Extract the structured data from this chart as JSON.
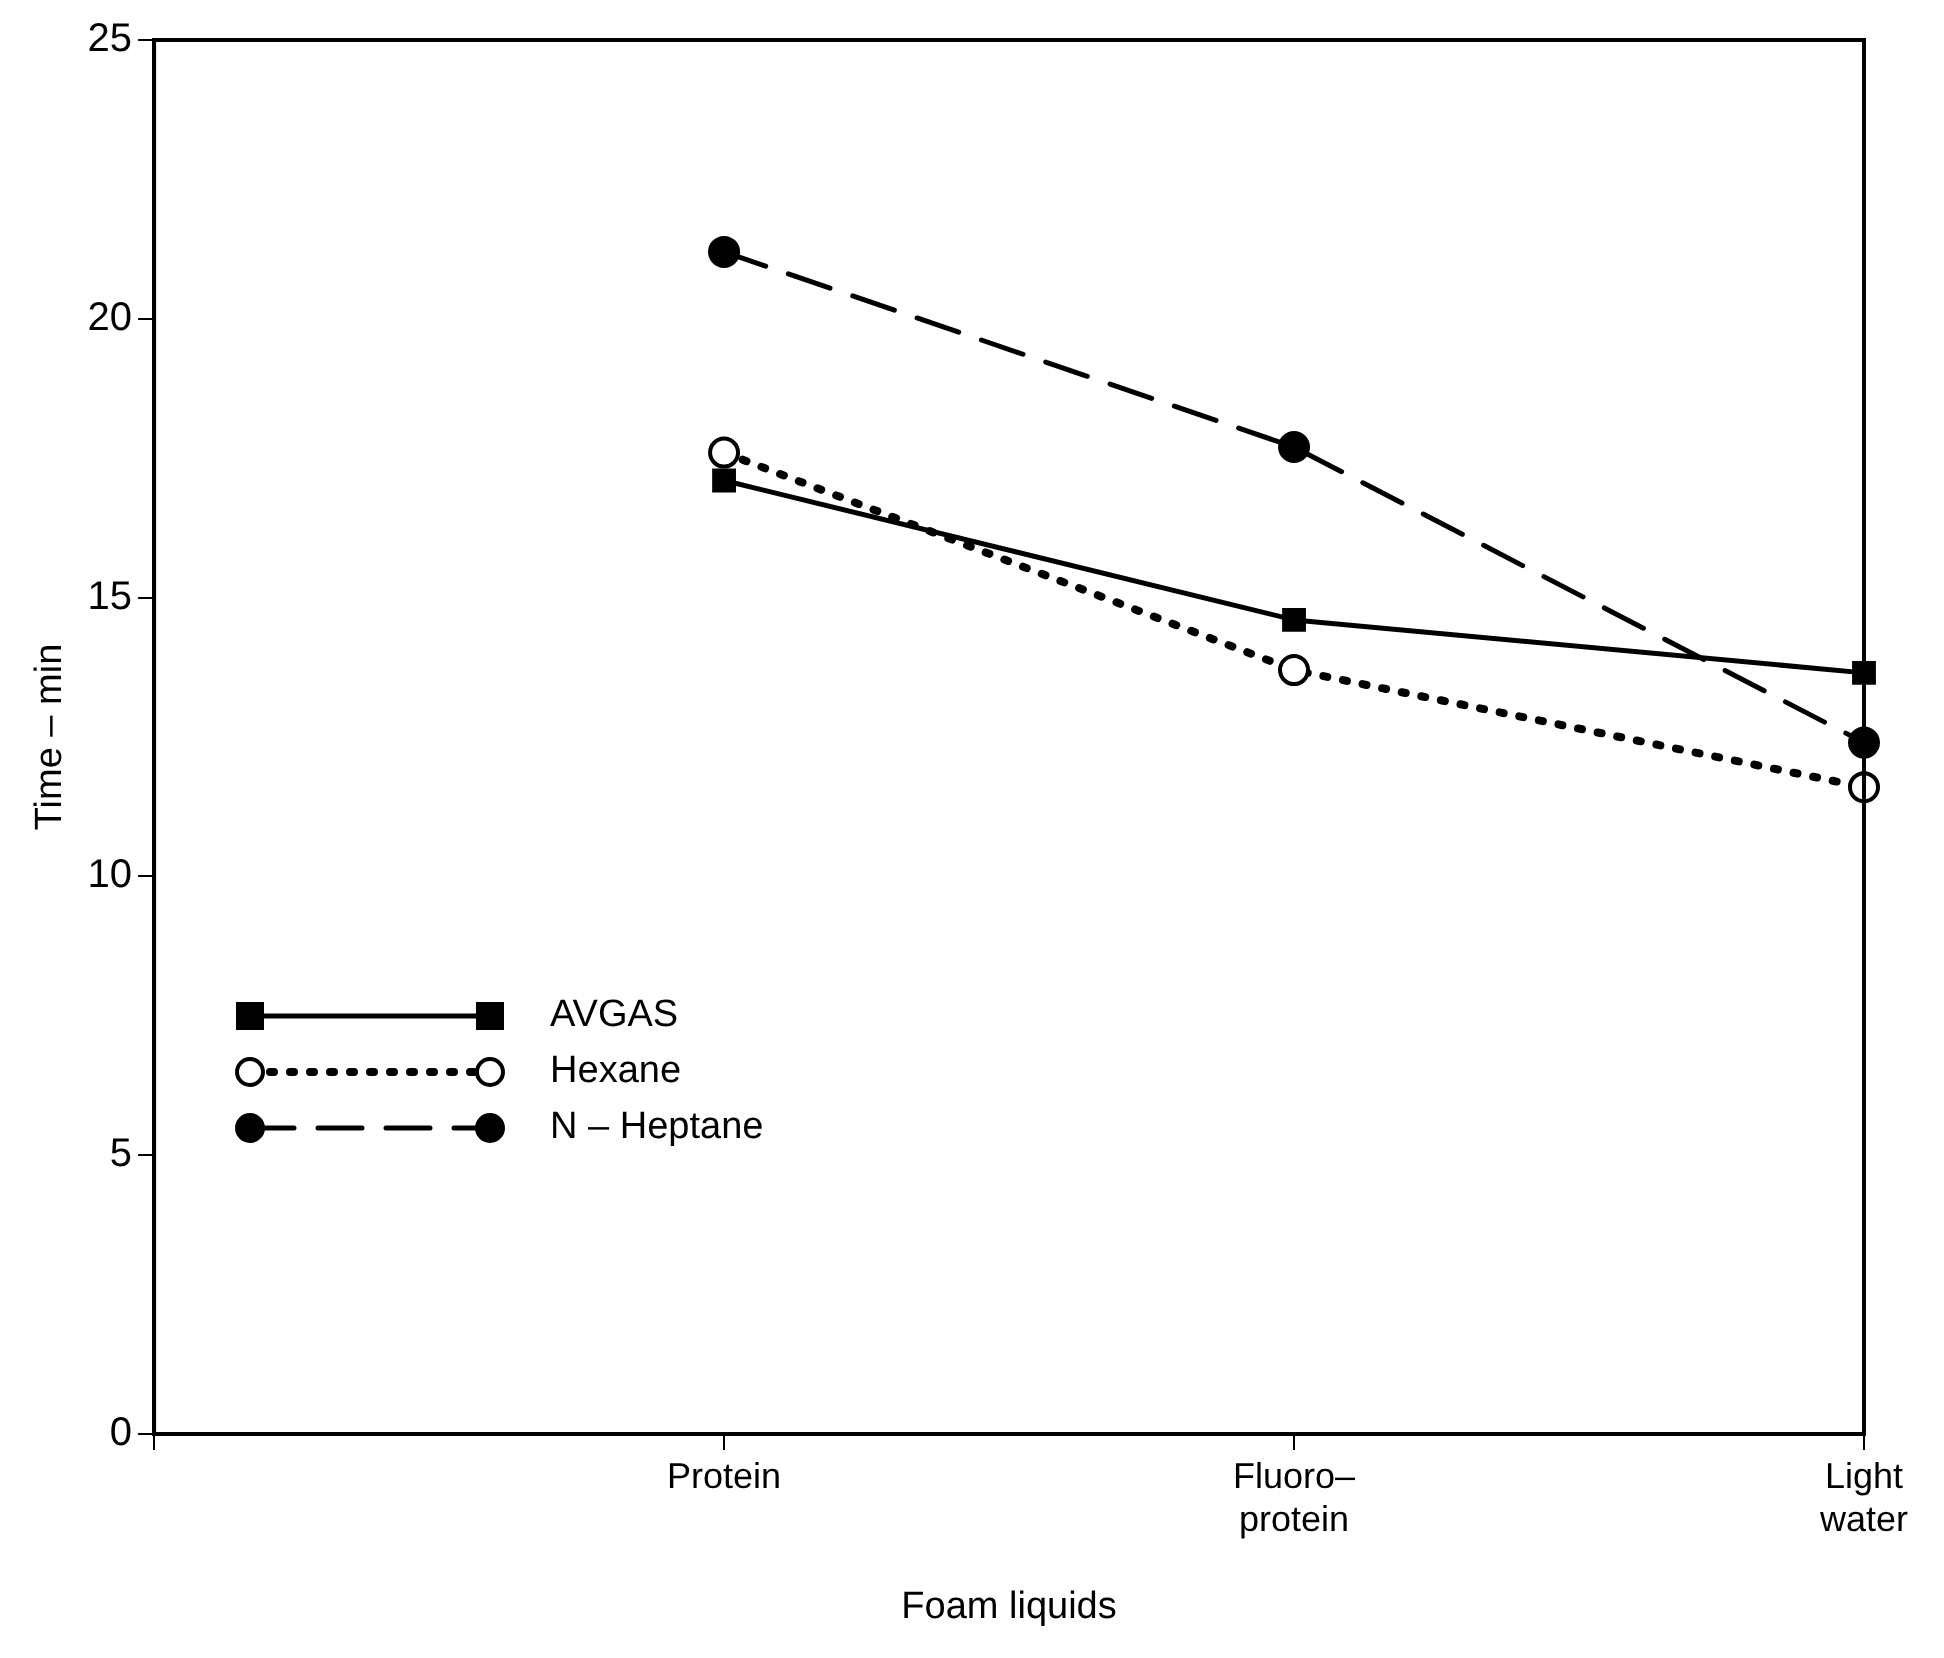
{
  "chart_data": {
    "type": "line",
    "xlabel": "Foam liquids",
    "ylabel": "Time – min",
    "categories": [
      null,
      "Protein",
      "Fluoro–\nprotein",
      "Light\nwater"
    ],
    "ylim": [
      0,
      25
    ],
    "yticks": [
      0,
      5,
      10,
      15,
      20,
      25
    ],
    "grid": false,
    "legend": "left",
    "series": [
      {
        "name": "AVGAS",
        "color": "#000000",
        "marker": "square",
        "line_style": "solid",
        "values": [
          null,
          17.1,
          14.6,
          13.65
        ]
      },
      {
        "name": "Hexane",
        "color": "#000000",
        "marker": "circle",
        "line_style": "dotted",
        "values": [
          null,
          17.6,
          13.7,
          11.6
        ]
      },
      {
        "name": "N – Heptane",
        "color": "#000000",
        "marker": "circle",
        "line_style": "dashed",
        "values": [
          null,
          21.2,
          17.7,
          12.4
        ]
      }
    ]
  }
}
